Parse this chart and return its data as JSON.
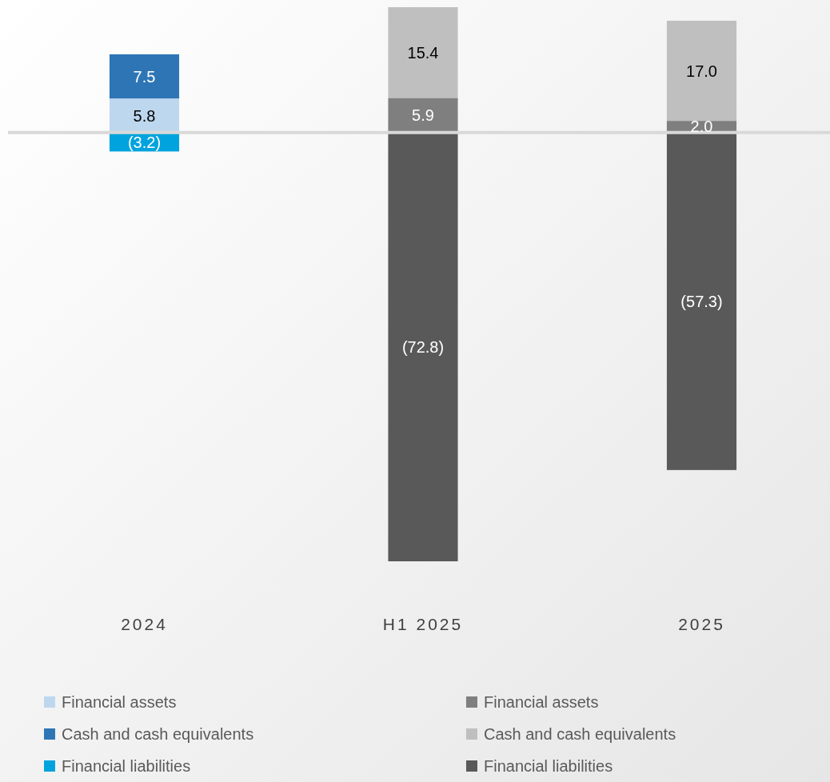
{
  "chart_data": {
    "type": "bar",
    "stacked": true,
    "legend": "bottom",
    "categories": [
      "2024",
      "H1 2025",
      "2025"
    ],
    "series": [
      {
        "name": "Financial assets",
        "color": "#bdd7ee",
        "values": [
          5.8,
          null,
          null
        ],
        "value_labels": [
          "5.8",
          null,
          null
        ]
      },
      {
        "name": "Cash and cash equivalents",
        "color": "#2e75b6",
        "values": [
          7.5,
          null,
          null
        ],
        "value_labels": [
          "7.5",
          null,
          null
        ]
      },
      {
        "name": "Financial liabilities",
        "color": "#00a3dd",
        "values": [
          -3.2,
          null,
          null
        ],
        "value_labels": [
          "(3.2)",
          null,
          null
        ]
      },
      {
        "name": "Financial assets",
        "color": "#7f7f7f",
        "values": [
          null,
          5.9,
          2.0
        ],
        "value_labels": [
          null,
          "5.9",
          "2.0"
        ]
      },
      {
        "name": "Cash and cash equivalents",
        "color": "#bfbfbf",
        "values": [
          null,
          15.4,
          17.0
        ],
        "value_labels": [
          null,
          "15.4",
          "17.0"
        ]
      },
      {
        "name": "Financial liabilities",
        "color": "#595959",
        "values": [
          null,
          -72.8,
          -57.3
        ],
        "value_labels": [
          null,
          "(72.8)",
          "(57.3)"
        ]
      }
    ]
  }
}
